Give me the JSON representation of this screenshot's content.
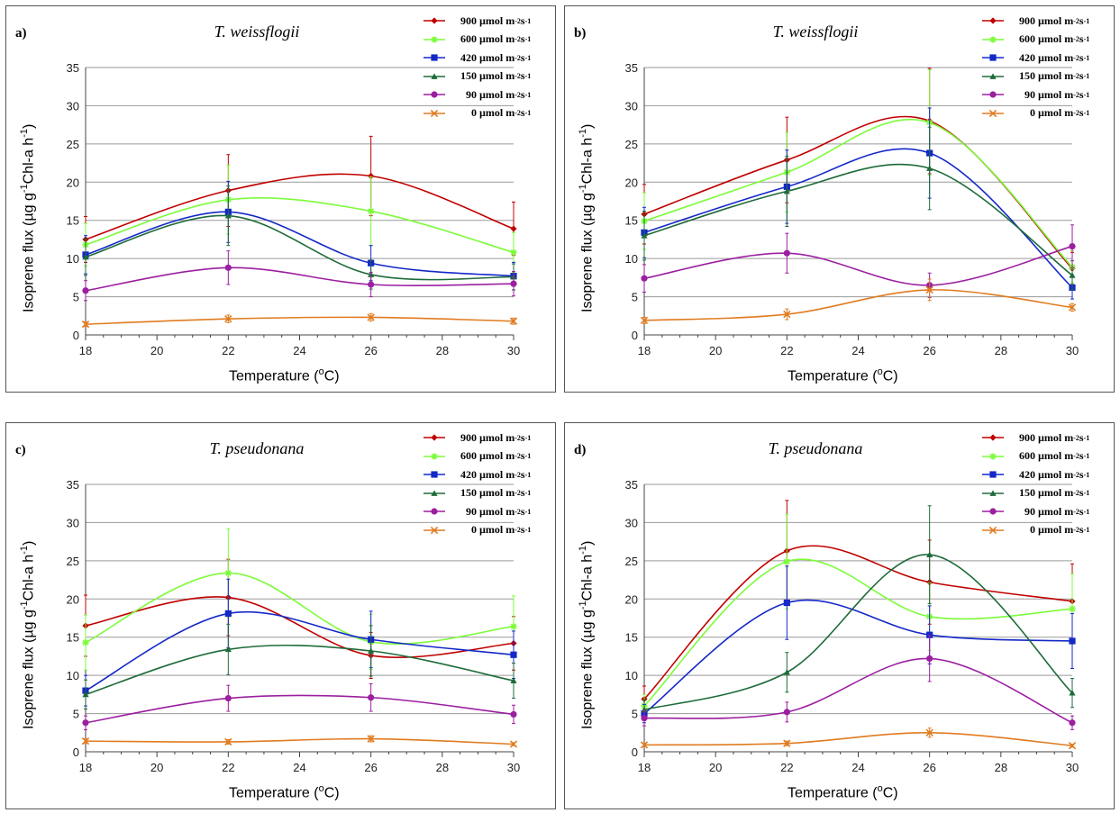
{
  "legend_unit": "µmol m",
  "legend_suffix": "s",
  "x_label_prefix": "Temperature (",
  "x_label_sup": "o",
  "x_label_suffix": "C)",
  "y_label_prefix": "Isoprene flux (µg g",
  "y_label_sup1": "-1",
  "y_label_mid": "Chl-a h",
  "y_label_sup2": "-1",
  "y_label_suffix": ")",
  "chart_data": [
    {
      "type": "line",
      "panel_label": "a)",
      "title": "T. weissflogii",
      "xlabel": "Temperature (oC)",
      "ylabel": "Isoprene flux (µg g-1 Chl-a h-1)",
      "xlim": [
        18,
        30
      ],
      "ylim": [
        0,
        35
      ],
      "xticks": [
        18,
        20,
        22,
        24,
        26,
        28,
        30
      ],
      "yticks": [
        0,
        5,
        10,
        15,
        20,
        25,
        30,
        35
      ],
      "grid": "horizontal",
      "legend": "top-right",
      "x": [
        18,
        22,
        26,
        30
      ],
      "series": [
        {
          "name": "900",
          "color": "#c00000",
          "marker": "diamond",
          "values": [
            12.5,
            18.9,
            20.8,
            13.9
          ],
          "err": [
            3.0,
            4.7,
            5.2,
            3.5
          ]
        },
        {
          "name": "600",
          "color": "#7cfc3a",
          "marker": "star",
          "values": [
            11.8,
            17.7,
            16.2,
            10.8
          ],
          "err": [
            2.8,
            4.5,
            4.5,
            2.6
          ]
        },
        {
          "name": "420",
          "color": "#1428c8",
          "marker": "square",
          "values": [
            10.5,
            16.1,
            9.4,
            7.7
          ],
          "err": [
            2.5,
            4.0,
            2.3,
            1.8
          ]
        },
        {
          "name": "150",
          "color": "#1e6b3a",
          "marker": "triangle",
          "values": [
            10.2,
            15.6,
            7.9,
            7.6
          ],
          "err": [
            2.4,
            3.9,
            1.9,
            1.7
          ]
        },
        {
          "name": "90",
          "color": "#9b1fa0",
          "marker": "circle",
          "values": [
            5.8,
            8.8,
            6.6,
            6.7
          ],
          "err": [
            1.3,
            2.2,
            1.6,
            1.6
          ]
        },
        {
          "name": "0",
          "color": "#e07b20",
          "marker": "x",
          "values": [
            1.4,
            2.1,
            2.3,
            1.8
          ],
          "err": [
            0.3,
            0.5,
            0.5,
            0.4
          ]
        }
      ]
    },
    {
      "type": "line",
      "panel_label": "b)",
      "title": "T. weissflogii",
      "xlabel": "Temperature (oC)",
      "ylabel": "Isoprene flux (µg g-1 Chl-a h-1)",
      "xlim": [
        18,
        30
      ],
      "ylim": [
        0,
        35
      ],
      "xticks": [
        18,
        20,
        22,
        24,
        26,
        28,
        30
      ],
      "yticks": [
        0,
        5,
        10,
        15,
        20,
        25,
        30,
        35
      ],
      "grid": "horizontal",
      "legend": "top-right",
      "x": [
        18,
        22,
        26,
        30
      ],
      "series": [
        {
          "name": "900",
          "color": "#c00000",
          "marker": "diamond",
          "values": [
            15.8,
            22.9,
            28.0,
            8.7
          ],
          "err": [
            3.9,
            5.6,
            6.9,
            2.1
          ]
        },
        {
          "name": "600",
          "color": "#7cfc3a",
          "marker": "star",
          "values": [
            14.9,
            21.3,
            27.8,
            8.9
          ],
          "err": [
            3.7,
            5.2,
            6.9,
            2.1
          ]
        },
        {
          "name": "420",
          "color": "#1428c8",
          "marker": "square",
          "values": [
            13.4,
            19.4,
            23.8,
            6.2
          ],
          "err": [
            3.3,
            4.8,
            5.9,
            1.5
          ]
        },
        {
          "name": "150",
          "color": "#1e6b3a",
          "marker": "triangle",
          "values": [
            13.0,
            18.8,
            21.8,
            7.8
          ],
          "err": [
            3.2,
            4.6,
            5.4,
            1.9
          ]
        },
        {
          "name": "90",
          "color": "#9b1fa0",
          "marker": "circle",
          "values": [
            7.4,
            10.7,
            6.5,
            11.6
          ],
          "err": [
            1.8,
            2.6,
            1.6,
            2.8
          ]
        },
        {
          "name": "0",
          "color": "#e07b20",
          "marker": "x",
          "values": [
            1.9,
            2.7,
            5.9,
            3.6
          ],
          "err": [
            0.4,
            0.7,
            1.4,
            0.5
          ]
        }
      ]
    },
    {
      "type": "line",
      "panel_label": "c)",
      "title": "T. pseudonana",
      "xlabel": "Temperature (oC)",
      "ylabel": "Isoprene flux (µg g-1 Chl-a h-1)",
      "xlim": [
        18,
        30
      ],
      "ylim": [
        0,
        35
      ],
      "xticks": [
        18,
        20,
        22,
        24,
        26,
        28,
        30
      ],
      "yticks": [
        0,
        5,
        10,
        15,
        20,
        25,
        30,
        35
      ],
      "grid": "horizontal",
      "legend": "top-right",
      "x": [
        18,
        22,
        26,
        30
      ],
      "series": [
        {
          "name": "900",
          "color": "#c00000",
          "marker": "diamond",
          "values": [
            16.5,
            20.2,
            12.6,
            14.2
          ],
          "err": [
            4.0,
            5.0,
            3.0,
            3.5
          ]
        },
        {
          "name": "600",
          "color": "#7cfc3a",
          "marker": "star",
          "values": [
            14.3,
            23.4,
            14.4,
            16.4
          ],
          "err": [
            3.6,
            5.8,
            3.6,
            4.0
          ]
        },
        {
          "name": "420",
          "color": "#1428c8",
          "marker": "square",
          "values": [
            8.0,
            18.1,
            14.7,
            12.7
          ],
          "err": [
            2.0,
            4.5,
            3.7,
            3.1
          ]
        },
        {
          "name": "150",
          "color": "#1e6b3a",
          "marker": "triangle",
          "values": [
            7.5,
            13.4,
            13.2,
            9.3
          ],
          "err": [
            1.9,
            3.3,
            3.3,
            2.3
          ]
        },
        {
          "name": "90",
          "color": "#9b1fa0",
          "marker": "circle",
          "values": [
            3.8,
            7.0,
            7.1,
            4.9
          ],
          "err": [
            0.9,
            1.7,
            1.8,
            1.2
          ]
        },
        {
          "name": "0",
          "color": "#e07b20",
          "marker": "x",
          "values": [
            1.4,
            1.3,
            1.7,
            1.0
          ],
          "err": [
            0.3,
            0.3,
            0.4,
            0.2
          ]
        }
      ]
    },
    {
      "type": "line",
      "panel_label": "d)",
      "title": "T. pseudonana",
      "xlabel": "Temperature (oC)",
      "ylabel": "Isoprene flux (µg g-1 Chl-a h-1)",
      "xlim": [
        18,
        30
      ],
      "ylim": [
        0,
        35
      ],
      "xticks": [
        18,
        20,
        22,
        24,
        26,
        28,
        30
      ],
      "yticks": [
        0,
        5,
        10,
        15,
        20,
        25,
        30,
        35
      ],
      "grid": "horizontal",
      "legend": "top-right",
      "x": [
        18,
        22,
        26,
        30
      ],
      "series": [
        {
          "name": "900",
          "color": "#c00000",
          "marker": "diamond",
          "values": [
            6.9,
            26.3,
            22.2,
            19.7
          ],
          "err": [
            1.7,
            6.6,
            5.5,
            4.9
          ]
        },
        {
          "name": "600",
          "color": "#7cfc3a",
          "marker": "star",
          "values": [
            6.0,
            24.9,
            17.7,
            18.7
          ],
          "err": [
            1.5,
            6.2,
            4.4,
            4.6
          ]
        },
        {
          "name": "420",
          "color": "#1428c8",
          "marker": "square",
          "values": [
            5.0,
            19.5,
            15.3,
            14.5
          ],
          "err": [
            1.2,
            4.8,
            3.8,
            3.6
          ]
        },
        {
          "name": "150",
          "color": "#1e6b3a",
          "marker": "triangle",
          "values": [
            5.5,
            10.4,
            25.8,
            7.7
          ],
          "err": [
            1.3,
            2.6,
            6.4,
            1.9
          ]
        },
        {
          "name": "90",
          "color": "#9b1fa0",
          "marker": "circle",
          "values": [
            4.4,
            5.2,
            12.2,
            3.8
          ],
          "err": [
            1.0,
            1.3,
            3.0,
            0.9
          ]
        },
        {
          "name": "0",
          "color": "#e07b20",
          "marker": "x",
          "values": [
            0.9,
            1.1,
            2.5,
            0.8
          ],
          "err": [
            0.2,
            0.3,
            0.6,
            0.2
          ]
        }
      ]
    }
  ]
}
